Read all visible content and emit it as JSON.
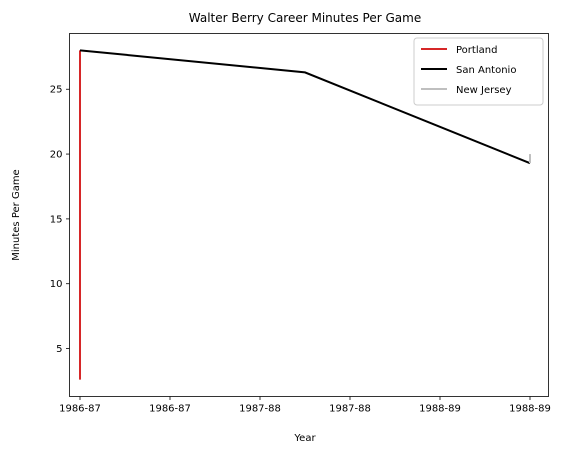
{
  "chart_data": {
    "type": "line",
    "title": "Walter Berry  Career Minutes Per Game",
    "xlabel": "Year",
    "ylabel": "Minutes Per Game",
    "x_ticks": [
      "1986-87",
      "1986-87",
      "1987-88",
      "1987-88",
      "1988-89",
      "1988-89"
    ],
    "xlim": [
      0,
      2
    ],
    "ylim": [
      1.3,
      29.3
    ],
    "y_ticks": [
      5,
      10,
      15,
      20,
      25
    ],
    "grid": false,
    "legend_position": "top-right",
    "series": [
      {
        "name": "Portland",
        "color": "#d62728",
        "points": [
          [
            0,
            2.6
          ],
          [
            0,
            28.0
          ]
        ]
      },
      {
        "name": "San Antonio",
        "color": "#000000",
        "points": [
          [
            0,
            28.0
          ],
          [
            1,
            26.3
          ],
          [
            2,
            19.3
          ]
        ]
      },
      {
        "name": "New Jersey",
        "color": "#bfbfbf",
        "points": [
          [
            2,
            19.3
          ],
          [
            2,
            20.0
          ]
        ]
      }
    ]
  }
}
